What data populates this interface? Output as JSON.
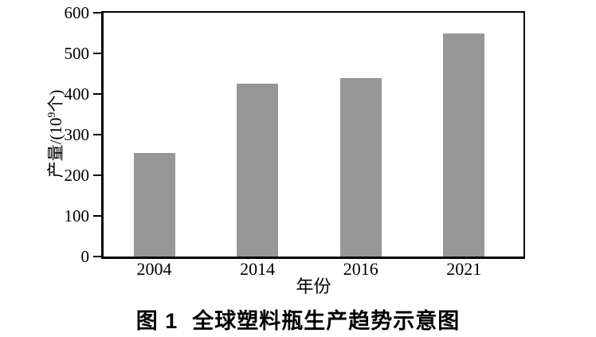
{
  "chart_data": {
    "type": "bar",
    "categories": [
      "2004",
      "2014",
      "2016",
      "2021"
    ],
    "values": [
      255,
      425,
      440,
      550
    ],
    "xlabel": "年份",
    "ylabel": "产量/(10⁹个)",
    "ylabel_parts": {
      "pre": "产量/(10",
      "sup": "9",
      "post": "个)"
    },
    "ylim": [
      0,
      600
    ],
    "yticks": [
      0,
      100,
      200,
      300,
      400,
      500,
      600
    ],
    "bar_color": "#979797",
    "axis_color": "#000000",
    "grid": false,
    "legend_position": "none"
  },
  "caption": {
    "label": "图 1",
    "title": "全球塑料瓶生产趋势示意图"
  }
}
